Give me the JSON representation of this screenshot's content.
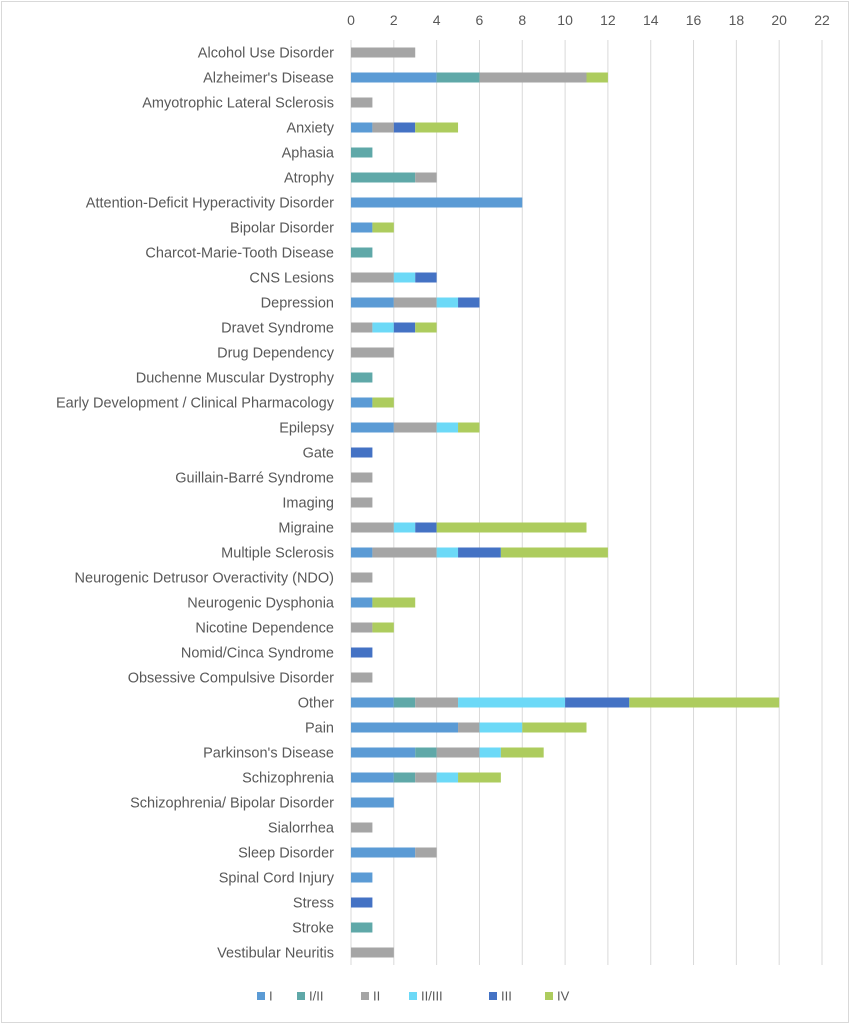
{
  "chart_data": {
    "type": "bar",
    "orientation": "horizontal",
    "stacked": true,
    "title": "",
    "xlabel": "",
    "ylabel": "",
    "xlim": [
      0,
      22
    ],
    "xticks": [
      0,
      2,
      4,
      6,
      8,
      10,
      12,
      14,
      16,
      18,
      20,
      22
    ],
    "grid": true,
    "legend_position": "bottom",
    "categories": [
      "Alcohol Use Disorder",
      "Alzheimer's Disease",
      "Amyotrophic Lateral Sclerosis",
      "Anxiety",
      "Aphasia",
      "Atrophy",
      "Attention-Deficit Hyperactivity Disorder",
      "Bipolar Disorder",
      "Charcot-Marie-Tooth Disease",
      "CNS Lesions",
      "Depression",
      "Dravet Syndrome",
      "Drug Dependency",
      "Duchenne Muscular Dystrophy",
      "Early Development / Clinical Pharmacology",
      "Epilepsy",
      "Gate",
      "Guillain-Barré Syndrome",
      "Imaging",
      "Migraine",
      "Multiple Sclerosis",
      "Neurogenic Detrusor Overactivity (NDO)",
      "Neurogenic Dysphonia",
      "Nicotine Dependence",
      "Nomid/Cinca Syndrome",
      "Obsessive Compulsive Disorder",
      "Other",
      "Pain",
      "Parkinson's Disease",
      "Schizophrenia",
      "Schizophrenia/ Bipolar Disorder",
      "Sialorrhea",
      "Sleep Disorder",
      "Spinal Cord Injury",
      "Stress",
      "Stroke",
      "Vestibular Neuritis"
    ],
    "series": [
      {
        "name": "I",
        "color": "#5b9bd5",
        "values": [
          0,
          4,
          0,
          1,
          0,
          0,
          8,
          1,
          0,
          0,
          2,
          0,
          0,
          0,
          1,
          2,
          0,
          0,
          0,
          0,
          1,
          0,
          1,
          0,
          0,
          0,
          2,
          5,
          3,
          2,
          2,
          0,
          3,
          1,
          0,
          0,
          0
        ]
      },
      {
        "name": "I/II",
        "color": "#5fa8a8",
        "values": [
          0,
          2,
          0,
          0,
          1,
          3,
          0,
          0,
          1,
          0,
          0,
          0,
          0,
          1,
          0,
          0,
          0,
          0,
          0,
          0,
          0,
          0,
          0,
          0,
          0,
          0,
          1,
          0,
          1,
          1,
          0,
          0,
          0,
          0,
          0,
          1,
          0
        ]
      },
      {
        "name": "II",
        "color": "#a5a5a5",
        "values": [
          3,
          5,
          1,
          1,
          0,
          1,
          0,
          0,
          0,
          2,
          2,
          1,
          2,
          0,
          0,
          2,
          0,
          1,
          1,
          2,
          3,
          1,
          0,
          1,
          0,
          1,
          2,
          1,
          2,
          1,
          0,
          1,
          1,
          0,
          0,
          0,
          2
        ]
      },
      {
        "name": "II/III",
        "color": "#6cd9f7",
        "values": [
          0,
          0,
          0,
          0,
          0,
          0,
          0,
          0,
          0,
          1,
          1,
          1,
          0,
          0,
          0,
          1,
          0,
          0,
          0,
          1,
          1,
          0,
          0,
          0,
          0,
          0,
          5,
          2,
          1,
          1,
          0,
          0,
          0,
          0,
          0,
          0,
          0
        ]
      },
      {
        "name": "III",
        "color": "#4472c4",
        "values": [
          0,
          0,
          0,
          1,
          0,
          0,
          0,
          0,
          0,
          1,
          1,
          1,
          0,
          0,
          0,
          0,
          1,
          0,
          0,
          1,
          2,
          0,
          0,
          0,
          1,
          0,
          3,
          0,
          0,
          0,
          0,
          0,
          0,
          0,
          1,
          0,
          0
        ]
      },
      {
        "name": "IV",
        "color": "#adcc5e",
        "values": [
          0,
          1,
          0,
          2,
          0,
          0,
          0,
          1,
          0,
          0,
          0,
          1,
          0,
          0,
          1,
          1,
          0,
          0,
          0,
          7,
          5,
          0,
          2,
          1,
          0,
          0,
          7,
          3,
          2,
          2,
          0,
          0,
          0,
          0,
          0,
          0,
          0
        ]
      }
    ]
  }
}
